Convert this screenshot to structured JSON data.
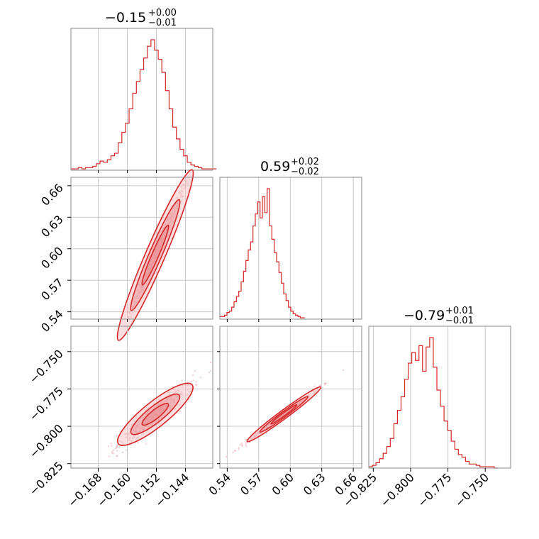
{
  "chart_data": {
    "type": "corner",
    "color": "#d62728",
    "fill_light": "#f4c4c6",
    "fill_dark": "#e98a8e",
    "parameters": [
      {
        "title_main": "−0.15",
        "title_sup": "+0.00",
        "title_sub": "−0.01",
        "median": -0.1523,
        "range": [
          -0.1755,
          -0.1365
        ],
        "ticks": [
          -0.168,
          -0.16,
          -0.152,
          -0.144
        ],
        "tick_labels": [
          "−0.168",
          "−0.160",
          "−0.152",
          "−0.144"
        ]
      },
      {
        "title_main": "0.59",
        "title_sup": "+0.02",
        "title_sub": "−0.02",
        "median": 0.594,
        "range": [
          0.533,
          0.668
        ],
        "ticks": [
          0.54,
          0.57,
          0.6,
          0.63,
          0.66
        ],
        "tick_labels": [
          "0.54",
          "0.57",
          "0.60",
          "0.63",
          "0.66"
        ]
      },
      {
        "title_main": "−0.79",
        "title_sup": "+0.01",
        "title_sub": "−0.01",
        "median": -0.792,
        "range": [
          -0.828,
          -0.733
        ],
        "ticks": [
          -0.825,
          -0.8,
          -0.775,
          -0.75
        ],
        "tick_labels": [
          "−0.825",
          "−0.800",
          "−0.775",
          "−0.750"
        ]
      }
    ],
    "histograms": [
      {
        "param": 0,
        "bin_width": 0.001,
        "bin_edges_start": -0.1755,
        "counts": [
          1,
          1,
          2,
          1,
          2,
          2,
          3,
          5,
          7,
          6,
          8,
          11,
          13,
          21,
          29,
          36,
          47,
          59,
          68,
          77,
          86,
          95,
          100,
          92,
          85,
          75,
          61,
          47,
          33,
          24,
          16,
          11,
          6,
          4,
          3,
          2,
          1,
          1,
          1,
          1
        ]
      },
      {
        "param": 1,
        "bin_width": 0.00225,
        "bin_edges_start": 0.533,
        "counts": [
          2,
          2,
          3,
          5,
          6,
          9,
          13,
          17,
          21,
          28,
          36,
          44,
          52,
          58,
          70,
          79,
          88,
          76,
          92,
          80,
          98,
          70,
          60,
          50,
          43,
          35,
          27,
          19,
          14,
          9,
          6,
          4,
          3,
          2,
          1,
          1
        ]
      },
      {
        "param": 2,
        "bin_width": 0.0024,
        "bin_edges_start": -0.828,
        "counts": [
          1,
          2,
          4,
          7,
          11,
          16,
          22,
          33,
          43,
          53,
          66,
          78,
          86,
          80,
          91,
          72,
          90,
          97,
          75,
          58,
          46,
          35,
          28,
          20,
          14,
          10,
          8,
          5,
          3,
          3,
          2,
          1,
          1,
          1,
          1,
          0
        ]
      }
    ],
    "pairs": [
      {
        "x_param": 0,
        "y_param": 1,
        "slope": 8.0,
        "spread": 0.0042
      },
      {
        "x_param": 0,
        "y_param": 2,
        "slope": 1.95,
        "spread": 0.0038
      },
      {
        "x_param": 1,
        "y_param": 2,
        "slope": 0.52,
        "spread": 0.0011
      }
    ]
  }
}
